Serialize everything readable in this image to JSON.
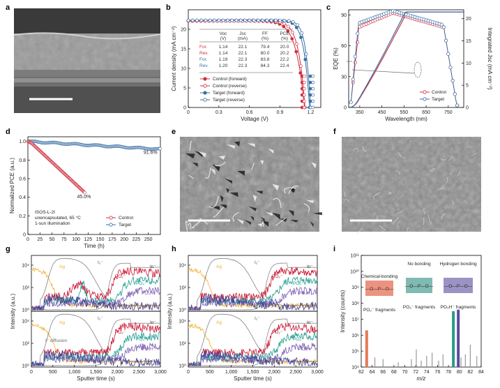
{
  "panels": {
    "a": "a",
    "b": "b",
    "c": "c",
    "d": "d",
    "e": "e",
    "f": "f",
    "g": "g",
    "h": "h",
    "i": "i"
  },
  "colors": {
    "control": "#d03040",
    "target": "#3a6ea5",
    "ag": "#f0b030",
    "i2": "#808080",
    "in": "#404040",
    "po2": "#c8102e",
    "po3": "#1a9a8a",
    "po3h": "#7a5ab0",
    "br": "#3f3f99"
  },
  "chart_data": [
    {
      "id": "b",
      "type": "line",
      "xlabel": "Voltage (V)",
      "ylabel": "Current density (mA cm⁻²)",
      "xlim": [
        0,
        1.3
      ],
      "ylim": [
        0,
        25
      ],
      "xticks": [
        "0",
        "0.3",
        "0.6",
        "0.9",
        "1.2"
      ],
      "yticks": [
        "0",
        "5",
        "10",
        "15",
        "20"
      ],
      "table": {
        "headers": [
          "Voc",
          "Jsc",
          "FF",
          "PCE"
        ],
        "units": [
          "(V)",
          "(mA)",
          "(%)",
          "(%)"
        ],
        "rows": [
          {
            "label": "For.",
            "values": [
              "1.14",
              "22.1",
              "79.4",
              "20.0"
            ],
            "color": "#d03040"
          },
          {
            "label": "Rev.",
            "values": [
              "1.14",
              "22.1",
              "80.0",
              "20.2"
            ],
            "color": "#d03040"
          },
          {
            "label": "For.",
            "values": [
              "1.19",
              "22.3",
              "83.8",
              "22.2"
            ],
            "color": "#3a6ea5"
          },
          {
            "label": "Rev.",
            "values": [
              "1.20",
              "22.3",
              "84.3",
              "22.4"
            ],
            "color": "#3a6ea5"
          }
        ]
      },
      "legend": [
        "Control (forward)",
        "Control (reverse)",
        "Target (forward)",
        "Target (reverse)"
      ],
      "series": [
        {
          "name": "Control (forward)",
          "jsc": 22.1,
          "voc": 1.14
        },
        {
          "name": "Control (reverse)",
          "jsc": 22.1,
          "voc": 1.145
        },
        {
          "name": "Target (forward)",
          "jsc": 22.3,
          "voc": 1.19
        },
        {
          "name": "Target (reverse)",
          "jsc": 22.3,
          "voc": 1.2
        }
      ]
    },
    {
      "id": "c",
      "type": "line",
      "xlabel": "Wavelength (nm)",
      "ylabel": "EQE (%)",
      "y2label": "Integrated Jsc (mA cm⁻²)",
      "xlim": [
        300,
        820
      ],
      "ylim": [
        0,
        95
      ],
      "y2lim": [
        0,
        22
      ],
      "xticks": [
        "350",
        "450",
        "550",
        "650",
        "750"
      ],
      "yticks": [
        "0",
        "30",
        "60",
        "90"
      ],
      "y2ticks": [
        "0",
        "5",
        "10",
        "15",
        "20"
      ],
      "legend": [
        "Control",
        "Target"
      ]
    },
    {
      "id": "d",
      "type": "scatter",
      "xlabel": "Time (h)",
      "ylabel": "Normalized PCE (a.u.)",
      "xlim": [
        0,
        275
      ],
      "ylim": [
        0,
        1.05
      ],
      "xticks": [
        "0",
        "25",
        "50",
        "75",
        "100",
        "125",
        "150",
        "175",
        "200",
        "225",
        "250"
      ],
      "yticks": [
        "0",
        "0.2",
        "0.4",
        "0.6",
        "0.8",
        "1.0"
      ],
      "series": [
        {
          "name": "Control",
          "end_time": 118,
          "end_value": 0.45
        },
        {
          "name": "Target",
          "end_time": 275,
          "end_value": 0.916
        }
      ],
      "annotations": [
        "91.6%",
        "45.0%"
      ],
      "conditions": [
        "ISOS-L-2I",
        "unencapsulated, 65 °C",
        "1-sun illumination"
      ],
      "legend": [
        "Control",
        "Target"
      ]
    },
    {
      "id": "g",
      "type": "line",
      "xlabel": "Sputter time (s)",
      "ylabel": "Intensity (a.u.)",
      "xlim": [
        0,
        3000
      ],
      "xticks": [
        "0",
        "500",
        "1,000",
        "1,500",
        "2,000",
        "2,500",
        "3,000"
      ],
      "yticks": [
        "10⁰",
        "10²",
        "10⁴"
      ],
      "labels_top": [
        "Ag",
        "I₂⁻",
        "In⁻",
        "PO₂⁻",
        "PO₃⁻",
        "PO₃H⁻"
      ],
      "labels_bottom": [
        "Ag",
        "I₂⁻",
        "In⁻",
        "PO₂⁻",
        "PO₃⁻",
        "PO₃H⁻",
        "I⁻ diffusion",
        "PO₂⁻ diffusion"
      ]
    },
    {
      "id": "h",
      "type": "line",
      "xlabel": "Sputter time (s)",
      "ylabel": "Intensity (a.u.)",
      "xlim": [
        0,
        3000
      ],
      "xticks": [
        "0",
        "500",
        "1,000",
        "1,500",
        "2,000",
        "2,500",
        "3,000"
      ],
      "yticks": [
        "10⁰",
        "10²",
        "10⁴"
      ],
      "labels_top": [
        "Ag",
        "I₂⁻",
        "In⁻",
        "PO₂⁻",
        "PO₃⁻",
        "PO₃H⁻"
      ],
      "labels_bottom": [
        "Ag",
        "I₂⁻",
        "In⁻",
        "PO₂⁻",
        "PO₃⁻",
        "PO₃H⁻"
      ]
    },
    {
      "id": "i",
      "type": "bar",
      "xlabel": "m/z",
      "ylabel": "Intensity (counts)",
      "xlim": [
        62,
        84
      ],
      "xticks": [
        "62",
        "64",
        "66",
        "68",
        "70",
        "72",
        "74",
        "76",
        "78",
        "80",
        "82",
        "84"
      ],
      "yticks": [
        "10⁴",
        "10⁵",
        "10⁶",
        "10⁷",
        "10⁸",
        "10⁹",
        "10¹⁰",
        "10¹¹"
      ],
      "ylim_log": [
        4,
        11
      ],
      "peaks": [
        {
          "mz": 63.0,
          "log": 6.3,
          "color": "#e67a55",
          "wide": true
        },
        {
          "mz": 78.9,
          "log": 7.5,
          "color": "#2a9a8a",
          "wide": true
        },
        {
          "mz": 79.8,
          "log": 7.6,
          "color": "#5a4aa0",
          "wide": true
        },
        {
          "mz": 64.5,
          "log": 4.6
        },
        {
          "mz": 66.0,
          "log": 4.5
        },
        {
          "mz": 68.8,
          "log": 4.3
        },
        {
          "mz": 71.2,
          "log": 4.5
        },
        {
          "mz": 72.1,
          "log": 5.1
        },
        {
          "mz": 73.0,
          "log": 4.4
        },
        {
          "mz": 74.0,
          "log": 4.7
        },
        {
          "mz": 75.0,
          "log": 4.9
        },
        {
          "mz": 76.2,
          "log": 4.4
        },
        {
          "mz": 77.0,
          "log": 4.8
        },
        {
          "mz": 80.3,
          "log": 4.6
        },
        {
          "mz": 81.1,
          "log": 4.8
        },
        {
          "mz": 82.0,
          "log": 5.4
        },
        {
          "mz": 83.2,
          "log": 4.7
        }
      ],
      "boxes": [
        {
          "title": "Chemical-bonding",
          "caption": "PO₂⁻ fragments",
          "color": "#e8806a"
        },
        {
          "title": "No bonding",
          "caption": "PO₃⁻ fragments",
          "color": "#6aaea4"
        },
        {
          "title": "Hydrogen bonding",
          "caption": "PO₃H⁻ fragments",
          "color": "#8a80b8"
        }
      ]
    }
  ]
}
